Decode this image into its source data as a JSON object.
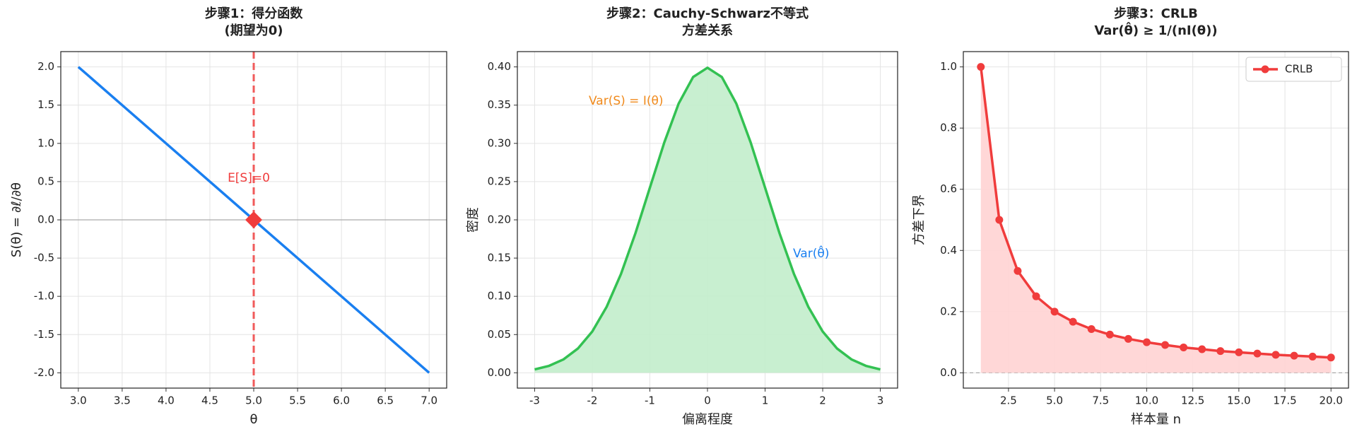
{
  "chart_data": [
    {
      "type": "line",
      "title": [
        "步骤1：得分函数",
        "(期望为0)"
      ],
      "xlabel": "θ",
      "ylabel": "S(θ) = ∂ℓ/∂θ",
      "x": [
        3,
        4,
        5,
        6,
        7
      ],
      "values": [
        2,
        1,
        0,
        -1,
        -2
      ],
      "color": "#1a7ff0",
      "xlim": [
        2.8,
        7.2
      ],
      "ylim": [
        -2.2,
        2.2
      ],
      "xticks": [
        {
          "value": 3,
          "label": "3.0"
        },
        {
          "value": 3.5,
          "label": "3.5"
        },
        {
          "value": 4,
          "label": "4.0"
        },
        {
          "value": 4.5,
          "label": "4.5"
        },
        {
          "value": 5,
          "label": "5.0"
        },
        {
          "value": 5.5,
          "label": "5.5"
        },
        {
          "value": 6,
          "label": "6.0"
        },
        {
          "value": 6.5,
          "label": "6.5"
        },
        {
          "value": 7,
          "label": "7.0"
        }
      ],
      "yticks": [
        {
          "value": -2,
          "label": "-2.0"
        },
        {
          "value": -1.5,
          "label": "-1.5"
        },
        {
          "value": -1,
          "label": "-1.0"
        },
        {
          "value": -0.5,
          "label": "-0.5"
        },
        {
          "value": 0,
          "label": "0.0"
        },
        {
          "value": 0.5,
          "label": "0.5"
        },
        {
          "value": 1,
          "label": "1.0"
        },
        {
          "value": 1.5,
          "label": "1.5"
        },
        {
          "value": 2,
          "label": "2.0"
        }
      ],
      "grid": true,
      "hline": 0,
      "vline": 5,
      "vline_color": "#f05a5a",
      "point": [
        5,
        0
      ],
      "point_color": "#f03c3c",
      "annotations": [
        {
          "text": "E[S]=0",
          "color": "#f03c3c"
        }
      ]
    },
    {
      "type": "area",
      "title": [
        "步骤2：Cauchy-Schwarz不等式",
        "方差关系"
      ],
      "xlabel": "偏离程度",
      "ylabel": "密度",
      "x": [
        -3,
        -2.75,
        -2.5,
        -2.25,
        -2,
        -1.75,
        -1.5,
        -1.25,
        -1,
        -0.75,
        -0.5,
        -0.25,
        0,
        0.25,
        0.5,
        0.75,
        1,
        1.25,
        1.5,
        1.75,
        2,
        2.25,
        2.5,
        2.75,
        3
      ],
      "values": [
        0.0044,
        0.0091,
        0.0175,
        0.0317,
        0.054,
        0.0863,
        0.1295,
        0.1826,
        0.242,
        0.3011,
        0.3521,
        0.3867,
        0.3989,
        0.3867,
        0.3521,
        0.3011,
        0.242,
        0.1826,
        0.1295,
        0.0863,
        0.054,
        0.0317,
        0.0175,
        0.0091,
        0.0044
      ],
      "color": "#33c152",
      "fill_color": "#c2edcb",
      "xlim": [
        -3.3,
        3.3
      ],
      "ylim": [
        -0.02,
        0.42
      ],
      "xticks": [
        -3,
        -2,
        -1,
        0,
        1,
        2,
        3
      ],
      "yticks": [
        {
          "value": 0,
          "label": "0.00"
        },
        {
          "value": 0.05,
          "label": "0.05"
        },
        {
          "value": 0.1,
          "label": "0.10"
        },
        {
          "value": 0.15,
          "label": "0.15"
        },
        {
          "value": 0.2,
          "label": "0.20"
        },
        {
          "value": 0.25,
          "label": "0.25"
        },
        {
          "value": 0.3,
          "label": "0.30"
        },
        {
          "value": 0.35,
          "label": "0.35"
        },
        {
          "value": 0.4,
          "label": "0.40"
        }
      ],
      "grid": true,
      "annotations": [
        {
          "text": "Var(S) = I(θ)",
          "color": "#f08a1c"
        },
        {
          "text": "Var(θ̂)",
          "color": "#1a7ff0"
        }
      ]
    },
    {
      "type": "line",
      "title": [
        "步骤3：CRLB",
        "Var(θ̂) ≥ 1/(nI(θ))"
      ],
      "xlabel": "样本量 n",
      "ylabel": "方差下界",
      "x": [
        1,
        2,
        3,
        4,
        5,
        6,
        7,
        8,
        9,
        10,
        11,
        12,
        13,
        14,
        15,
        16,
        17,
        18,
        19,
        20
      ],
      "series": [
        {
          "name": "CRLB",
          "color": "#f03c3c",
          "values": [
            1,
            0.5,
            0.333,
            0.25,
            0.2,
            0.167,
            0.143,
            0.125,
            0.111,
            0.1,
            0.091,
            0.083,
            0.077,
            0.071,
            0.067,
            0.063,
            0.059,
            0.056,
            0.053,
            0.05
          ]
        }
      ],
      "fill_color": "#ffd3d3",
      "markers": true,
      "xlim": [
        0.05,
        20.95
      ],
      "ylim": [
        -0.05,
        1.05
      ],
      "xticks": [
        2.5,
        {
          "value": 5,
          "label": "5.0"
        },
        7.5,
        {
          "value": 10,
          "label": "10.0"
        },
        12.5,
        {
          "value": 15,
          "label": "15.0"
        },
        17.5,
        {
          "value": 20,
          "label": "20.0"
        }
      ],
      "yticks": [
        {
          "value": 0,
          "label": "0.0"
        },
        0.2,
        0.4,
        0.6,
        0.8,
        {
          "value": 1,
          "label": "1.0"
        }
      ],
      "grid": true,
      "hline": 0,
      "hline_dashed": true,
      "legend": "upper right"
    }
  ]
}
